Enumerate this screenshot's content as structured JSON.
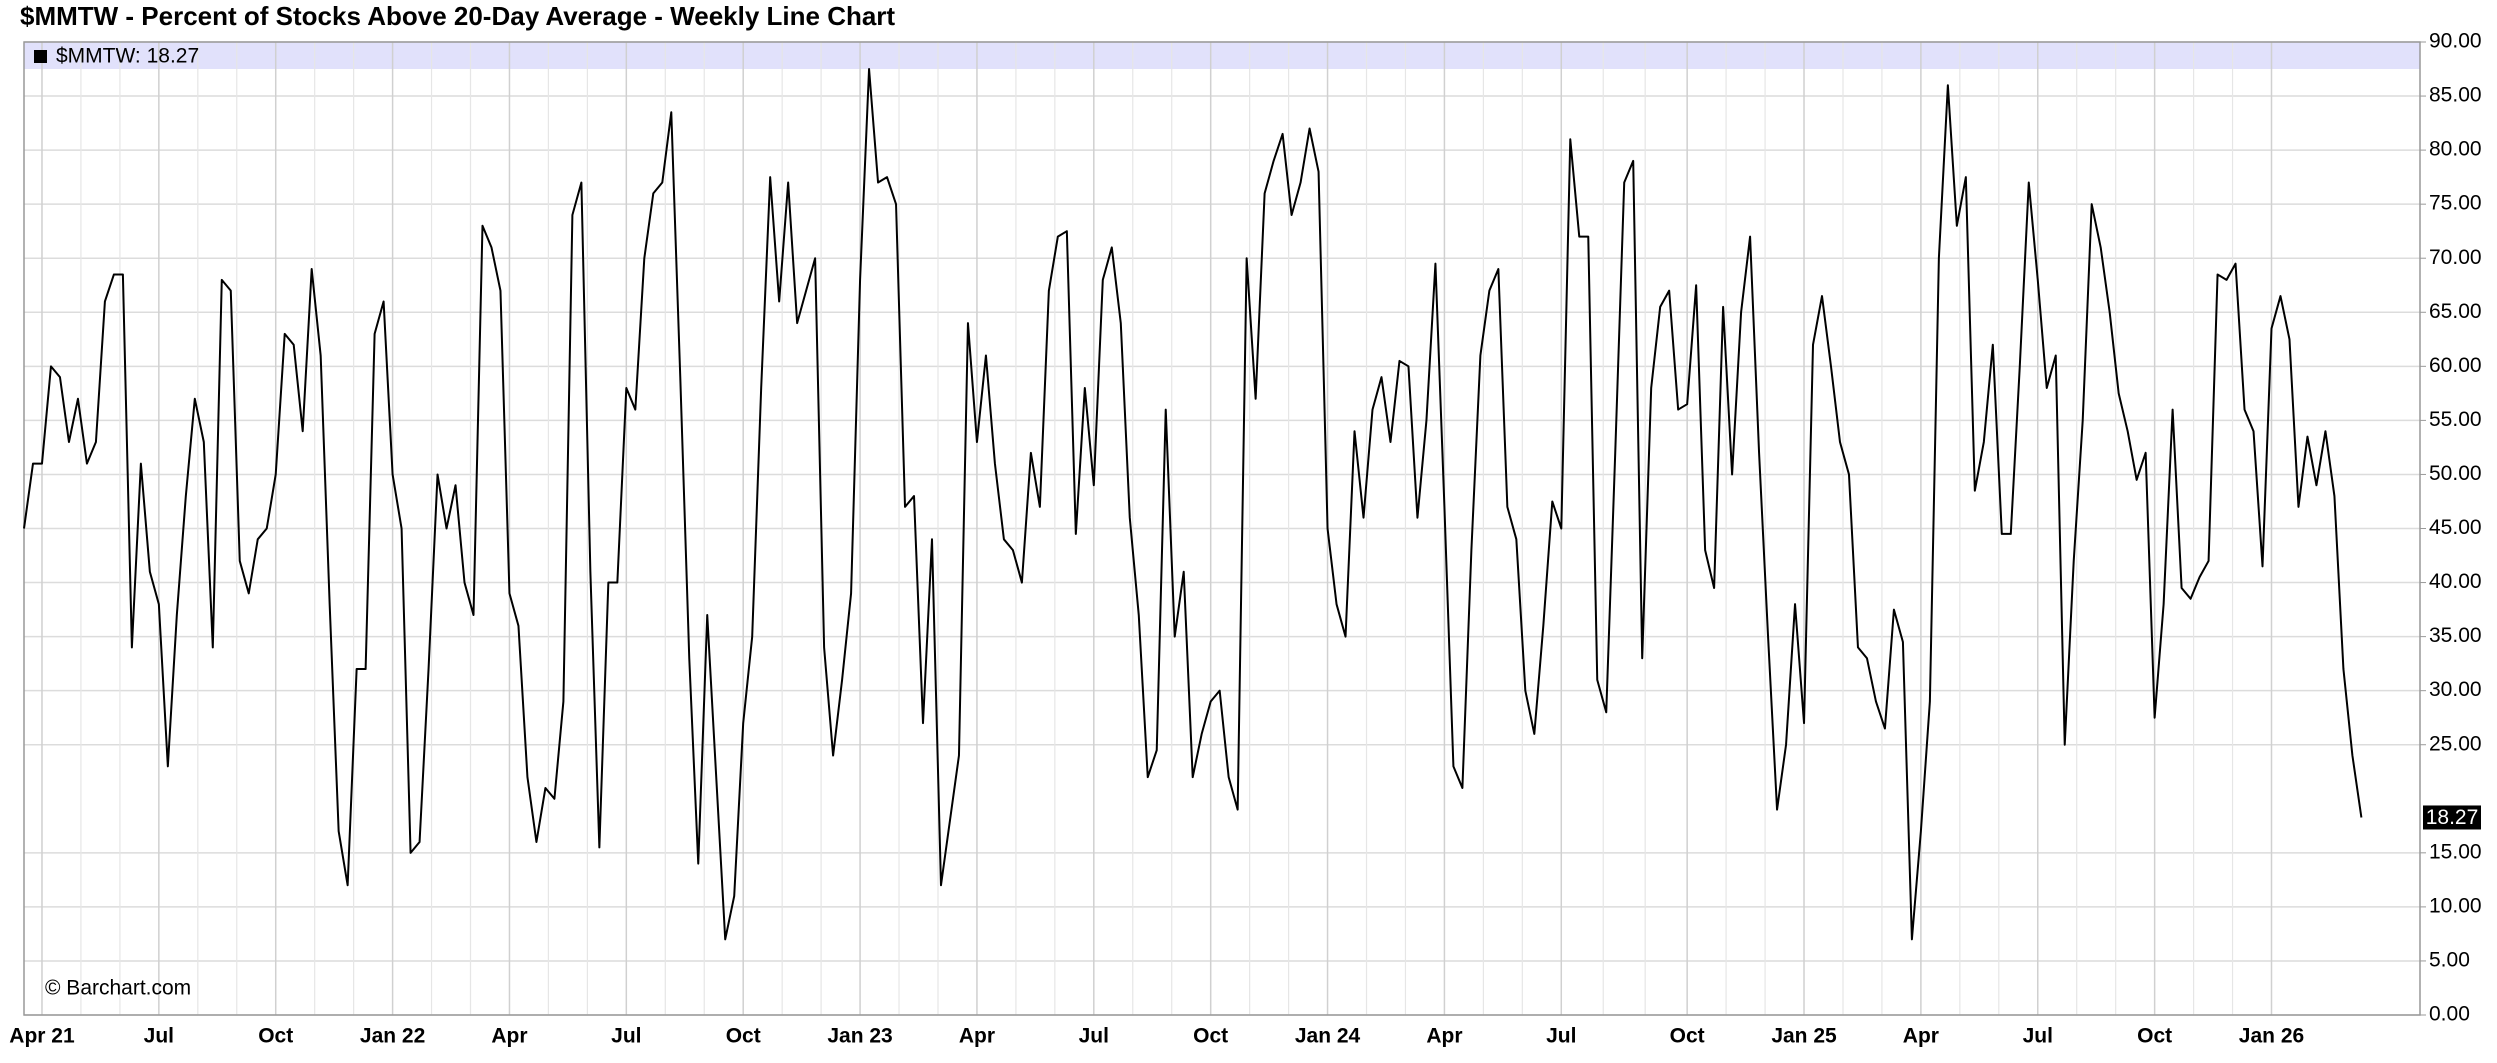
{
  "chart_data": {
    "type": "line",
    "title": "$MMTW - Percent of Stocks Above 20-Day Average - Weekly Line Chart",
    "legend_text": "$MMTW: 18.27",
    "last_value_label": "18.27",
    "credit": "© Barchart.com",
    "categories": [
      null,
      null,
      "Apr 21",
      null,
      null,
      null,
      null,
      null,
      null,
      null,
      null,
      null,
      null,
      null,
      null,
      "Jul",
      null,
      null,
      null,
      null,
      null,
      null,
      null,
      null,
      null,
      null,
      null,
      null,
      "Oct",
      null,
      null,
      null,
      null,
      null,
      null,
      null,
      null,
      null,
      null,
      null,
      null,
      "Jan 22",
      null,
      null,
      null,
      null,
      null,
      null,
      null,
      null,
      null,
      null,
      null,
      null,
      "Apr",
      null,
      null,
      null,
      null,
      null,
      null,
      null,
      null,
      null,
      null,
      null,
      null,
      "Jul",
      null,
      null,
      null,
      null,
      null,
      null,
      null,
      null,
      null,
      null,
      null,
      null,
      "Oct",
      null,
      null,
      null,
      null,
      null,
      null,
      null,
      null,
      null,
      null,
      null,
      null,
      "Jan 23",
      null,
      null,
      null,
      null,
      null,
      null,
      null,
      null,
      null,
      null,
      null,
      null,
      "Apr",
      null,
      null,
      null,
      null,
      null,
      null,
      null,
      null,
      null,
      null,
      null,
      null,
      "Jul",
      null,
      null,
      null,
      null,
      null,
      null,
      null,
      null,
      null,
      null,
      null,
      null,
      "Oct",
      null,
      null,
      null,
      null,
      null,
      null,
      null,
      null,
      null,
      null,
      null,
      null,
      "Jan 24",
      null,
      null,
      null,
      null,
      null,
      null,
      null,
      null,
      null,
      null,
      null,
      null,
      "Apr",
      null,
      null,
      null,
      null,
      null,
      null,
      null,
      null,
      null,
      null,
      null,
      null,
      "Jul",
      null,
      null,
      null,
      null,
      null,
      null,
      null,
      null,
      null,
      null,
      null,
      null,
      null,
      "Oct",
      null,
      null,
      null,
      null,
      null,
      null,
      null,
      null,
      null,
      null,
      null,
      null,
      "Jan 25",
      null,
      null,
      null,
      null,
      null,
      null,
      null,
      null,
      null,
      null,
      null,
      null,
      "Apr",
      null,
      null,
      null,
      null,
      null,
      null,
      null,
      null,
      null,
      null,
      null,
      null,
      "Jul",
      null,
      null,
      null,
      null,
      null,
      null,
      null,
      null,
      null,
      null,
      null,
      null,
      "Oct",
      null,
      null,
      null,
      null,
      null,
      null,
      null,
      null,
      null,
      null,
      null,
      null,
      "Jan 26",
      null,
      null,
      null,
      null,
      null,
      null,
      null,
      null,
      null,
      null
    ],
    "series": [
      {
        "name": "$MMTW",
        "color": "#000000",
        "values": [
          45,
          51,
          51,
          60,
          59,
          53,
          57,
          51,
          53,
          66,
          68.5,
          68.5,
          34,
          51,
          41,
          38,
          23,
          37,
          48,
          57,
          53,
          34,
          68,
          67,
          42,
          39,
          44,
          45,
          50,
          63,
          62,
          54,
          69,
          61,
          38,
          17,
          12,
          32,
          32,
          63,
          66,
          50,
          45,
          15,
          16,
          32,
          50,
          45,
          49,
          40,
          37,
          73,
          71,
          67,
          39,
          36,
          22,
          16,
          21,
          20,
          29,
          74,
          77,
          41,
          15.5,
          40,
          40,
          58,
          56,
          70,
          76,
          77,
          83.5,
          59,
          33,
          14,
          37,
          22,
          7,
          11,
          27,
          35,
          58,
          77.5,
          66,
          77,
          64,
          67,
          70,
          34,
          24,
          31,
          39,
          68,
          87.5,
          77,
          77.5,
          75,
          47,
          48,
          27,
          44,
          12,
          18,
          24,
          64,
          53,
          61,
          51,
          44,
          43,
          40,
          52,
          47,
          67,
          72,
          72.5,
          44.5,
          58,
          49,
          68,
          71,
          64,
          46,
          37,
          22,
          24.5,
          56,
          35,
          41,
          22,
          26,
          29,
          30,
          22,
          19,
          70,
          57,
          76,
          79,
          81.5,
          74,
          77,
          82,
          78,
          45,
          38,
          35,
          54,
          46,
          56,
          59,
          53,
          60.5,
          60,
          46,
          55,
          69.5,
          47,
          23,
          21,
          43,
          61,
          67,
          69,
          47,
          44,
          30,
          26,
          36,
          47.5,
          45,
          81,
          72,
          72,
          31,
          28,
          52,
          77,
          79,
          33,
          58,
          65.5,
          67,
          56,
          56.5,
          67.5,
          43,
          39.5,
          65.5,
          50,
          65,
          72,
          52,
          35,
          19,
          25,
          38,
          27,
          62,
          66.5,
          60,
          53,
          50,
          34,
          33,
          29,
          26.5,
          37.5,
          34.5,
          7,
          17,
          29,
          70,
          86,
          73,
          77.5,
          48.5,
          53,
          62,
          44.5,
          44.5,
          60,
          77,
          68,
          58,
          61,
          25,
          42,
          55,
          75,
          71,
          65,
          57.5,
          54,
          49.5,
          52,
          27.5,
          38,
          56,
          39.5,
          38.5,
          40.5,
          42,
          68.5,
          68,
          69.5,
          56,
          54,
          41.5,
          63.5,
          66.5,
          62.5,
          47,
          53.5,
          49,
          54,
          48,
          32,
          24,
          18.27
        ]
      }
    ],
    "ylim": [
      0,
      90
    ],
    "yticks": [
      {
        "value": 0,
        "label": "0.00"
      },
      {
        "value": 5,
        "label": "5.00"
      },
      {
        "value": 10,
        "label": "10.00"
      },
      {
        "value": 15,
        "label": "15.00"
      },
      {
        "value": 25,
        "label": "25.00"
      },
      {
        "value": 30,
        "label": "30.00"
      },
      {
        "value": 35,
        "label": "35.00"
      },
      {
        "value": 40,
        "label": "40.00"
      },
      {
        "value": 45,
        "label": "45.00"
      },
      {
        "value": 50,
        "label": "50.00"
      },
      {
        "value": 55,
        "label": "55.00"
      },
      {
        "value": 60,
        "label": "60.00"
      },
      {
        "value": 65,
        "label": "65.00"
      },
      {
        "value": 70,
        "label": "70.00"
      },
      {
        "value": 75,
        "label": "75.00"
      },
      {
        "value": 80,
        "label": "80.00"
      },
      {
        "value": 85,
        "label": "85.00"
      },
      {
        "value": 90,
        "label": "90.00"
      }
    ],
    "grid": true
  }
}
